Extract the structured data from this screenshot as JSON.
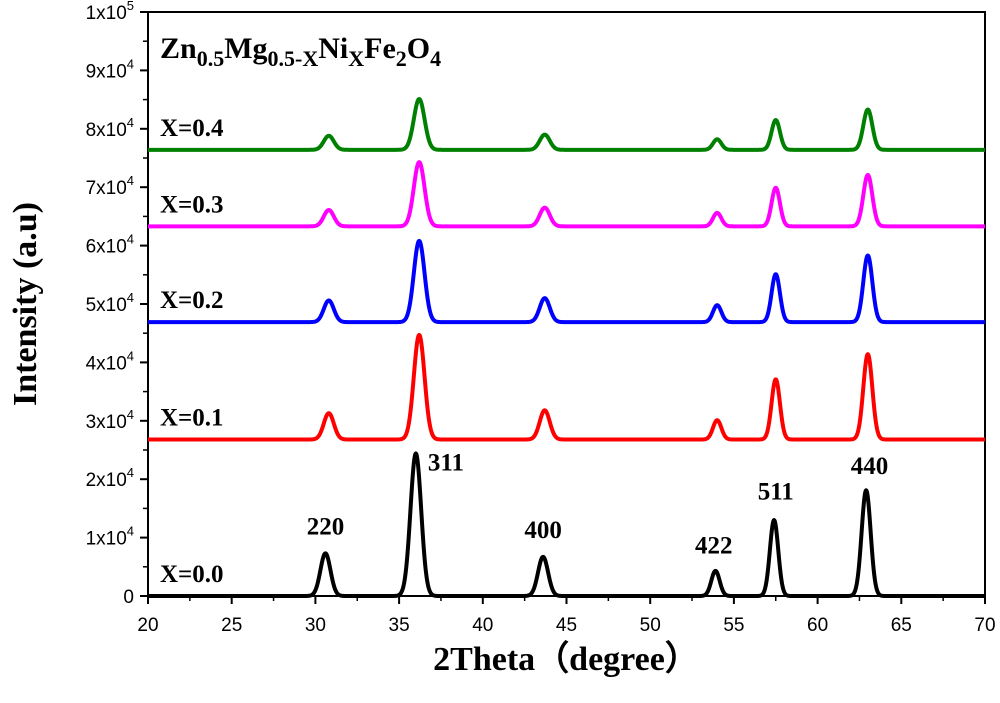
{
  "chart_data": {
    "type": "line",
    "title_parts": [
      {
        "text": "Zn",
        "sub": false
      },
      {
        "text": "0.5",
        "sub": true
      },
      {
        "text": "Mg",
        "sub": false
      },
      {
        "text": "0.5-X",
        "sub": true
      },
      {
        "text": "Ni",
        "sub": false
      },
      {
        "text": "X",
        "sub": true
      },
      {
        "text": "Fe",
        "sub": false
      },
      {
        "text": "2",
        "sub": true
      },
      {
        "text": "O",
        "sub": false
      },
      {
        "text": "4",
        "sub": true
      }
    ],
    "xlabel": "2Theta（degree）",
    "ylabel": "Intensity (a.u)",
    "xlim": [
      20,
      70
    ],
    "ylim": [
      0,
      100000
    ],
    "xticks": [
      20,
      25,
      30,
      35,
      40,
      45,
      50,
      55,
      60,
      65,
      70
    ],
    "xtick_labels": [
      "20",
      "25",
      "30",
      "35",
      "40",
      "45",
      "50",
      "55",
      "60",
      "65",
      "70"
    ],
    "yticks": [
      0,
      10000,
      20000,
      30000,
      40000,
      50000,
      60000,
      70000,
      80000,
      90000,
      100000
    ],
    "ytick_labels": [
      {
        "base": "0",
        "exp": ""
      },
      {
        "base": "1x10",
        "exp": "4"
      },
      {
        "base": "2x10",
        "exp": "4"
      },
      {
        "base": "3x10",
        "exp": "4"
      },
      {
        "base": "4x10",
        "exp": "4"
      },
      {
        "base": "5x10",
        "exp": "4"
      },
      {
        "base": "6x10",
        "exp": "4"
      },
      {
        "base": "7x10",
        "exp": "4"
      },
      {
        "base": "8x10",
        "exp": "4"
      },
      {
        "base": "9x10",
        "exp": "4"
      },
      {
        "base": "1x10",
        "exp": "5"
      }
    ],
    "grid": false,
    "series": [
      {
        "label": "X=0.0",
        "color": "#000000",
        "baseline": 0,
        "peaks": [
          {
            "x": 30.6,
            "height": 7300,
            "width": 0.3
          },
          {
            "x": 36.0,
            "height": 24400,
            "width": 0.32
          },
          {
            "x": 43.6,
            "height": 6700,
            "width": 0.3
          },
          {
            "x": 53.9,
            "height": 4300,
            "width": 0.25
          },
          {
            "x": 57.4,
            "height": 13000,
            "width": 0.25
          },
          {
            "x": 62.9,
            "height": 18100,
            "width": 0.27
          }
        ]
      },
      {
        "label": "X=0.1",
        "color": "#ff0000",
        "baseline": 26800,
        "peaks": [
          {
            "x": 30.8,
            "height": 4500,
            "width": 0.3
          },
          {
            "x": 36.2,
            "height": 17900,
            "width": 0.32
          },
          {
            "x": 43.7,
            "height": 5000,
            "width": 0.3
          },
          {
            "x": 54.0,
            "height": 3300,
            "width": 0.25
          },
          {
            "x": 57.5,
            "height": 10300,
            "width": 0.25
          },
          {
            "x": 63.0,
            "height": 14600,
            "width": 0.27
          }
        ]
      },
      {
        "label": "X=0.2",
        "color": "#0000ff",
        "baseline": 46900,
        "peaks": [
          {
            "x": 30.8,
            "height": 3700,
            "width": 0.3
          },
          {
            "x": 36.2,
            "height": 13900,
            "width": 0.32
          },
          {
            "x": 43.7,
            "height": 4100,
            "width": 0.3
          },
          {
            "x": 54.0,
            "height": 2900,
            "width": 0.25
          },
          {
            "x": 57.5,
            "height": 8200,
            "width": 0.25
          },
          {
            "x": 63.0,
            "height": 11400,
            "width": 0.27
          }
        ]
      },
      {
        "label": "X=0.3",
        "color": "#ff00ff",
        "baseline": 63300,
        "peaks": [
          {
            "x": 30.8,
            "height": 2800,
            "width": 0.3
          },
          {
            "x": 36.2,
            "height": 11000,
            "width": 0.32
          },
          {
            "x": 43.7,
            "height": 3200,
            "width": 0.3
          },
          {
            "x": 54.0,
            "height": 2300,
            "width": 0.25
          },
          {
            "x": 57.5,
            "height": 6600,
            "width": 0.25
          },
          {
            "x": 63.0,
            "height": 8800,
            "width": 0.27
          }
        ]
      },
      {
        "label": "X=0.4",
        "color": "#008000",
        "baseline": 76400,
        "peaks": [
          {
            "x": 30.8,
            "height": 2400,
            "width": 0.3
          },
          {
            "x": 36.2,
            "height": 8700,
            "width": 0.32
          },
          {
            "x": 43.7,
            "height": 2600,
            "width": 0.3
          },
          {
            "x": 54.0,
            "height": 1800,
            "width": 0.25
          },
          {
            "x": 57.5,
            "height": 5100,
            "width": 0.25
          },
          {
            "x": 63.0,
            "height": 6900,
            "width": 0.27
          }
        ]
      }
    ],
    "annotations": [
      {
        "text": "220",
        "x": 30.6,
        "y": 10500
      },
      {
        "text": "311",
        "x": 37.8,
        "y": 21500
      },
      {
        "text": "400",
        "x": 43.6,
        "y": 9900
      },
      {
        "text": "422",
        "x": 53.8,
        "y": 7300
      },
      {
        "text": "511",
        "x": 57.5,
        "y": 16500
      },
      {
        "text": "440",
        "x": 63.1,
        "y": 20900
      }
    ]
  }
}
